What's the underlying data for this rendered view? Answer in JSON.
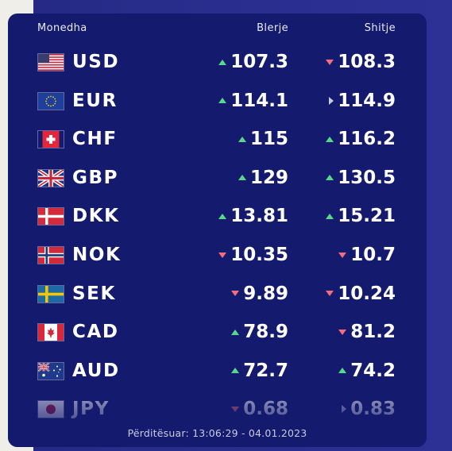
{
  "headers": {
    "currency": "Monedha",
    "buy": "Blerje",
    "sell": "Shitje"
  },
  "rows": [
    {
      "code": "USD",
      "flag": "us-flag-icon",
      "buy": "107.3",
      "buy_trend": "up",
      "sell": "108.3",
      "sell_trend": "down"
    },
    {
      "code": "EUR",
      "flag": "eu-flag-icon",
      "buy": "114.1",
      "buy_trend": "up",
      "sell": "114.9",
      "sell_trend": "flat"
    },
    {
      "code": "CHF",
      "flag": "ch-flag-icon",
      "buy": "115",
      "buy_trend": "up",
      "sell": "116.2",
      "sell_trend": "up"
    },
    {
      "code": "GBP",
      "flag": "gb-flag-icon",
      "buy": "129",
      "buy_trend": "up",
      "sell": "130.5",
      "sell_trend": "up"
    },
    {
      "code": "DKK",
      "flag": "dk-flag-icon",
      "buy": "13.81",
      "buy_trend": "up",
      "sell": "15.21",
      "sell_trend": "up"
    },
    {
      "code": "NOK",
      "flag": "no-flag-icon",
      "buy": "10.35",
      "buy_trend": "down",
      "sell": "10.7",
      "sell_trend": "down"
    },
    {
      "code": "SEK",
      "flag": "se-flag-icon",
      "buy": "9.89",
      "buy_trend": "down",
      "sell": "10.24",
      "sell_trend": "down"
    },
    {
      "code": "CAD",
      "flag": "ca-flag-icon",
      "buy": "78.9",
      "buy_trend": "up",
      "sell": "81.2",
      "sell_trend": "down"
    },
    {
      "code": "AUD",
      "flag": "au-flag-icon",
      "buy": "72.7",
      "buy_trend": "up",
      "sell": "74.2",
      "sell_trend": "up"
    },
    {
      "code": "JPY",
      "flag": "jp-flag-icon",
      "buy": "0.68",
      "buy_trend": "down",
      "sell": "0.83",
      "sell_trend": "flat"
    }
  ],
  "updated": "Përditësuar: 13:06:29 - 04.01.2023",
  "colors": {
    "card": "#141a6e",
    "up": "#57d98a",
    "down": "#f26d7d",
    "flat": "#c6c8de"
  }
}
